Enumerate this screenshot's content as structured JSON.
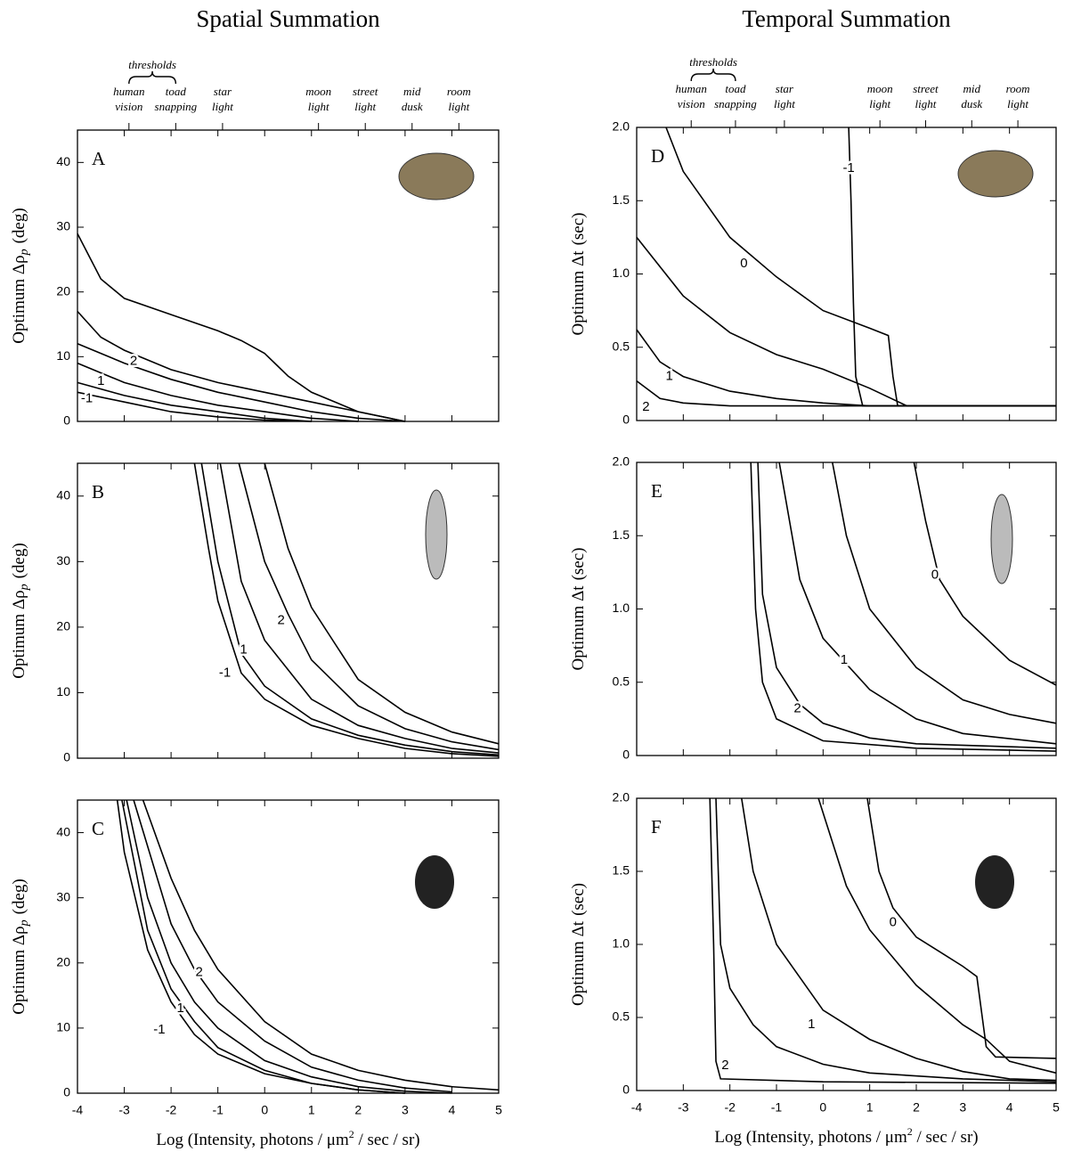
{
  "chart_data": [
    {
      "type": "line",
      "panel": "A",
      "title": "Spatial Summation",
      "ylabel": {
        "text": "Optimum Δρ",
        "sub": "p",
        "unit": "(deg)"
      },
      "color": "#000",
      "xlim": [
        -4,
        5
      ],
      "xticks": [
        -4,
        -3,
        -2,
        -1,
        0,
        1,
        2,
        3,
        4,
        5
      ],
      "ylim": [
        0,
        45
      ],
      "yticks": [
        0,
        10,
        20,
        30,
        40
      ],
      "markers": {
        "title": "thresholds",
        "items": [
          {
            "x": -2.9,
            "label": [
              "human",
              "vision"
            ]
          },
          {
            "x": -1.9,
            "label": [
              "toad",
              "snapping"
            ]
          },
          {
            "x": -0.9,
            "label": [
              "star",
              "light"
            ]
          },
          {
            "x": 1.15,
            "label": [
              "moon",
              "light"
            ]
          },
          {
            "x": 2.15,
            "label": [
              "street",
              "light"
            ]
          },
          {
            "x": 3.15,
            "label": [
              "mid",
              "dusk"
            ]
          },
          {
            "x": 4.15,
            "label": [
              "room",
              "light"
            ]
          }
        ]
      },
      "series": [
        {
          "x": [
            -4,
            -3.5,
            -3,
            -2,
            -1,
            -0.5,
            0,
            0.5,
            1,
            2,
            3
          ],
          "values": [
            29,
            22,
            19,
            16.5,
            14,
            12.5,
            10.5,
            7,
            4.5,
            1.5,
            0
          ]
        },
        {
          "x": [
            -4,
            -3.5,
            -3,
            -2,
            -1,
            0,
            1,
            2,
            3
          ],
          "values": [
            17,
            13,
            11,
            8,
            6,
            4.5,
            3,
            1.5,
            0
          ]
        },
        {
          "x": [
            -4,
            -3,
            -2,
            -1,
            0,
            1,
            2,
            3
          ],
          "values": [
            12,
            9,
            6.5,
            4.5,
            3,
            1.5,
            0.5,
            0
          ]
        },
        {
          "x": [
            -4,
            -3,
            -2,
            -1,
            0,
            1,
            2
          ],
          "values": [
            9,
            6,
            4,
            2.5,
            1.5,
            0.5,
            0
          ]
        },
        {
          "x": [
            -4,
            -3,
            -2,
            -1,
            0,
            1
          ],
          "values": [
            6,
            4,
            2.5,
            1.5,
            0.5,
            0
          ]
        },
        {
          "x": [
            -4,
            -3,
            -2,
            -1,
            0,
            1
          ],
          "values": [
            4.5,
            3,
            1.5,
            0.7,
            0.2,
            0
          ]
        }
      ],
      "annotations": [
        {
          "text": "2",
          "x": -2.8,
          "y": 9.3
        },
        {
          "text": "1",
          "x": -3.5,
          "y": 6.2
        },
        {
          "text": "-1",
          "x": -3.8,
          "y": 3.5
        }
      ]
    },
    {
      "type": "line",
      "panel": "B",
      "ylabel": {
        "text": "Optimum Δρ",
        "sub": "p",
        "unit": "(deg)"
      },
      "color": "#000",
      "xlim": [
        -4,
        5
      ],
      "xticks": [
        -4,
        -3,
        -2,
        -1,
        0,
        1,
        2,
        3,
        4,
        5
      ],
      "ylim": [
        0,
        45
      ],
      "yticks": [
        0,
        10,
        20,
        30,
        40
      ],
      "series": [
        {
          "x": [
            -1.5,
            -1.2,
            -1,
            -0.5,
            0,
            1,
            2,
            3,
            4,
            5
          ],
          "values": [
            45,
            32,
            24,
            13,
            9,
            5,
            3,
            1.5,
            0.7,
            0.3
          ]
        },
        {
          "x": [
            -1.35,
            -1,
            -0.5,
            0,
            1,
            2,
            3,
            4,
            5
          ],
          "values": [
            45,
            30,
            16,
            11,
            6,
            3.5,
            2,
            1,
            0.5
          ]
        },
        {
          "x": [
            -0.95,
            -0.5,
            0,
            1,
            2,
            3,
            4,
            5
          ],
          "values": [
            45,
            27,
            18,
            9,
            5,
            3,
            1.5,
            0.8
          ]
        },
        {
          "x": [
            -0.55,
            0,
            0.5,
            1,
            2,
            3,
            4,
            5
          ],
          "values": [
            45,
            30,
            22,
            15,
            8,
            4.5,
            2.5,
            1.3
          ]
        },
        {
          "x": [
            0,
            0.5,
            1,
            2,
            3,
            4,
            5
          ],
          "values": [
            45,
            32,
            23,
            12,
            7,
            4,
            2.2
          ]
        }
      ],
      "annotations": [
        {
          "text": "-1",
          "x": -0.85,
          "y": 13
        },
        {
          "text": "1",
          "x": -0.45,
          "y": 16.5
        },
        {
          "text": "2",
          "x": 0.35,
          "y": 21
        }
      ]
    },
    {
      "type": "line",
      "panel": "C",
      "ylabel": {
        "text": "Optimum Δρ",
        "sub": "p",
        "unit": "(deg)"
      },
      "color": "#000",
      "xlabel": {
        "text": "Log (Intensity, photons / μm",
        "sup": "2",
        "after": " / sec / sr)"
      },
      "xlim": [
        -4,
        5
      ],
      "xticks": [
        -4,
        -3,
        -2,
        -1,
        0,
        1,
        2,
        3,
        4,
        5
      ],
      "ylim": [
        0,
        45
      ],
      "yticks": [
        0,
        10,
        20,
        30,
        40
      ],
      "series": [
        {
          "x": [
            -3.15,
            -3,
            -2.5,
            -2,
            -1.5,
            -1,
            0,
            1,
            2,
            3
          ],
          "values": [
            45,
            37,
            22,
            14,
            9,
            6,
            3,
            1.5,
            0.5,
            0
          ]
        },
        {
          "x": [
            -3.05,
            -2.5,
            -2,
            -1.5,
            -1,
            0,
            1,
            2,
            3
          ],
          "values": [
            45,
            25,
            16,
            11,
            7,
            3.5,
            1.5,
            0.5,
            0
          ]
        },
        {
          "x": [
            -2.95,
            -2.5,
            -2,
            -1.5,
            -1,
            0,
            1,
            2,
            3,
            4
          ],
          "values": [
            45,
            30,
            20,
            14,
            10,
            5,
            2.5,
            1,
            0.3,
            0
          ]
        },
        {
          "x": [
            -2.8,
            -2,
            -1.5,
            -1,
            0,
            1,
            2,
            3,
            4
          ],
          "values": [
            45,
            26,
            19,
            14,
            8,
            4,
            2,
            0.8,
            0.2
          ]
        },
        {
          "x": [
            -2.6,
            -2,
            -1.5,
            -1,
            0,
            1,
            2,
            3,
            4,
            5
          ],
          "values": [
            45,
            33,
            25,
            19,
            11,
            6,
            3.5,
            2,
            1,
            0.5
          ]
        }
      ],
      "annotations": [
        {
          "text": "-1",
          "x": -2.25,
          "y": 9.7
        },
        {
          "text": "1",
          "x": -1.8,
          "y": 13
        },
        {
          "text": "2",
          "x": -1.4,
          "y": 18.5
        }
      ]
    },
    {
      "type": "line",
      "panel": "D",
      "title": "Temporal Summation",
      "ylabel": {
        "text": "Optimum Δt",
        "unit": "(sec)"
      },
      "color": "#000",
      "xlim": [
        -4,
        5
      ],
      "xticks": [
        -4,
        -3,
        -2,
        -1,
        0,
        1,
        2,
        3,
        4,
        5
      ],
      "ylim": [
        0,
        2
      ],
      "yticks": [
        0,
        0.5,
        {
          "value": 1,
          "label": "1.0"
        },
        1.5,
        {
          "value": 2,
          "label": "2.0"
        }
      ],
      "markers": {
        "title": "thresholds",
        "items": [
          {
            "x": -2.83,
            "label": [
              "human",
              "vision"
            ]
          },
          {
            "x": -1.88,
            "label": [
              "toad",
              "snapping"
            ]
          },
          {
            "x": -0.83,
            "label": [
              "star",
              "light"
            ]
          },
          {
            "x": 1.22,
            "label": [
              "moon",
              "light"
            ]
          },
          {
            "x": 2.2,
            "label": [
              "street",
              "light"
            ]
          },
          {
            "x": 3.19,
            "label": [
              "mid",
              "dusk"
            ]
          },
          {
            "x": 4.18,
            "label": [
              "room",
              "light"
            ]
          }
        ]
      },
      "series": [
        {
          "x": [
            -3.37,
            -3,
            -2,
            -1,
            0,
            1,
            1.4,
            1.5,
            1.6,
            5
          ],
          "values": [
            2,
            1.7,
            1.25,
            0.98,
            0.75,
            0.63,
            0.58,
            0.3,
            0.1,
            0.1
          ]
        },
        {
          "x": [
            -4,
            -3,
            -2,
            -1,
            0,
            1,
            1.8,
            5
          ],
          "values": [
            1.25,
            0.85,
            0.6,
            0.45,
            0.35,
            0.22,
            0.1,
            0.1
          ]
        },
        {
          "x": [
            -4,
            -3.5,
            -3,
            -2,
            -1,
            0,
            1,
            5
          ],
          "values": [
            0.62,
            0.4,
            0.3,
            0.2,
            0.15,
            0.12,
            0.1,
            0.1
          ]
        },
        {
          "x": [
            -4,
            -3.5,
            -3,
            -2,
            5
          ],
          "values": [
            0.27,
            0.15,
            0.12,
            0.1,
            0.1
          ]
        },
        {
          "x": [
            0.55,
            0.6,
            0.65,
            0.7,
            0.85,
            5
          ],
          "values": [
            2,
            1.5,
            0.8,
            0.3,
            0.1,
            0.1
          ]
        }
      ],
      "annotations": [
        {
          "text": "0",
          "x": -1.7,
          "y": 1.07
        },
        {
          "text": "1",
          "x": -3.3,
          "y": 0.3
        },
        {
          "text": "2",
          "x": -3.8,
          "y": 0.09
        },
        {
          "text": "-1",
          "x": 0.55,
          "y": 1.72
        }
      ]
    },
    {
      "type": "line",
      "panel": "E",
      "ylabel": {
        "text": "Optimum Δt",
        "unit": "(sec)"
      },
      "color": "#000",
      "xlim": [
        -4,
        5
      ],
      "xticks": [
        -4,
        -3,
        -2,
        -1,
        0,
        1,
        2,
        3,
        4,
        5
      ],
      "ylim": [
        0,
        2
      ],
      "yticks": [
        0,
        0.5,
        {
          "value": 1,
          "label": "1.0"
        },
        1.5,
        {
          "value": 2,
          "label": "2.0"
        }
      ],
      "series": [
        {
          "x": [
            -1.55,
            -1.45,
            -1.3,
            -1,
            0,
            2,
            5
          ],
          "values": [
            2,
            1,
            0.5,
            0.25,
            0.1,
            0.05,
            0.03
          ]
        },
        {
          "x": [
            -1.4,
            -1.3,
            -1,
            -0.5,
            0,
            1,
            2,
            5
          ],
          "values": [
            2,
            1.1,
            0.6,
            0.35,
            0.22,
            0.12,
            0.08,
            0.05
          ]
        },
        {
          "x": [
            -0.94,
            -0.5,
            0,
            1,
            2,
            3,
            5
          ],
          "values": [
            2,
            1.2,
            0.8,
            0.45,
            0.25,
            0.15,
            0.08
          ]
        },
        {
          "x": [
            0.2,
            0.5,
            1,
            2,
            3,
            4,
            5
          ],
          "values": [
            2,
            1.5,
            1,
            0.6,
            0.38,
            0.28,
            0.22
          ]
        },
        {
          "x": [
            1.95,
            2.2,
            2.5,
            3,
            4,
            5
          ],
          "values": [
            2,
            1.6,
            1.2,
            0.95,
            0.65,
            0.48
          ]
        }
      ],
      "annotations": [
        {
          "text": "2",
          "x": -0.55,
          "y": 0.32
        },
        {
          "text": "1",
          "x": 0.45,
          "y": 0.65
        },
        {
          "text": "0",
          "x": 2.4,
          "y": 1.23
        }
      ]
    },
    {
      "type": "line",
      "panel": "F",
      "ylabel": {
        "text": "Optimum Δt",
        "unit": "(sec)"
      },
      "color": "#000",
      "xlabel": {
        "text": "Log (Intensity, photons / μm",
        "sup": "2",
        "after": " / sec / sr)"
      },
      "xlim": [
        -4,
        5
      ],
      "xticks": [
        -4,
        -3,
        -2,
        -1,
        0,
        1,
        2,
        3,
        4,
        5
      ],
      "ylim": [
        0,
        2
      ],
      "yticks": [
        0,
        0.5,
        {
          "value": 1,
          "label": "1.0"
        },
        1.5,
        {
          "value": 2,
          "label": "2.0"
        }
      ],
      "series": [
        {
          "x": [
            -2.43,
            -2.35,
            -2.3,
            -2.2,
            0,
            5
          ],
          "values": [
            2,
            1,
            0.2,
            0.08,
            0.06,
            0.05
          ]
        },
        {
          "x": [
            -2.3,
            -2.2,
            -2,
            -1.5,
            -1,
            0,
            1,
            3,
            5
          ],
          "values": [
            2,
            1,
            0.7,
            0.45,
            0.3,
            0.18,
            0.12,
            0.08,
            0.06
          ]
        },
        {
          "x": [
            -1.75,
            -1.5,
            -1,
            0,
            1,
            2,
            3,
            4,
            5
          ],
          "values": [
            2,
            1.5,
            1,
            0.55,
            0.35,
            0.22,
            0.13,
            0.08,
            0.07
          ]
        },
        {
          "x": [
            -0.1,
            0.5,
            1,
            2,
            3,
            3.5,
            4,
            5
          ],
          "values": [
            2,
            1.4,
            1.1,
            0.72,
            0.45,
            0.35,
            0.2,
            0.12
          ]
        },
        {
          "x": [
            0.95,
            1.2,
            1.5,
            2,
            2.5,
            3,
            3.3,
            3.5,
            3.7,
            5
          ],
          "values": [
            2,
            1.5,
            1.25,
            1.05,
            0.95,
            0.85,
            0.78,
            0.3,
            0.23,
            0.22
          ]
        }
      ],
      "annotations": [
        {
          "text": "2",
          "x": -2.1,
          "y": 0.17
        },
        {
          "text": "1",
          "x": -0.25,
          "y": 0.45
        },
        {
          "text": "0",
          "x": 1.5,
          "y": 1.15
        }
      ]
    }
  ]
}
